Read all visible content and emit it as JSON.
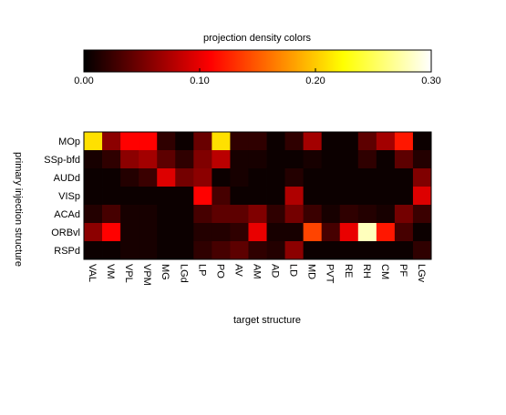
{
  "chart_data": {
    "type": "heatmap",
    "colorbar": {
      "title": "projection density colors",
      "ticks": [
        0.0,
        0.1,
        0.2,
        0.3
      ],
      "tick_labels": [
        "0.00",
        "0.10",
        "0.20",
        "0.30"
      ],
      "range": [
        0.0,
        0.3
      ],
      "colormap": "hot"
    },
    "ylabel": "primary injection structure",
    "xlabel": "target structure",
    "rows": [
      "MOp",
      "SSp-bfd",
      "AUDd",
      "VISp",
      "ACAd",
      "ORBvl",
      "RSPd"
    ],
    "columns": [
      "VAL",
      "VM",
      "VPL",
      "VPM",
      "MG",
      "LGd",
      "LP",
      "PO",
      "AV",
      "AM",
      "AD",
      "LD",
      "MD",
      "PVT",
      "RE",
      "RH",
      "CM",
      "PF",
      "LGv"
    ],
    "values": [
      [
        0.21,
        0.06,
        0.11,
        0.11,
        0.02,
        0.005,
        0.045,
        0.21,
        0.02,
        0.02,
        0.005,
        0.02,
        0.07,
        0.005,
        0.005,
        0.04,
        0.07,
        0.12,
        0.005
      ],
      [
        0.01,
        0.02,
        0.06,
        0.07,
        0.04,
        0.02,
        0.055,
        0.08,
        0.01,
        0.01,
        0.005,
        0.005,
        0.01,
        0.005,
        0.005,
        0.02,
        0.005,
        0.04,
        0.015
      ],
      [
        0.005,
        0.005,
        0.015,
        0.025,
        0.095,
        0.05,
        0.06,
        0.005,
        0.01,
        0.005,
        0.005,
        0.015,
        0.005,
        0.005,
        0.005,
        0.005,
        0.005,
        0.005,
        0.055
      ],
      [
        0.005,
        0.005,
        0.005,
        0.005,
        0.005,
        0.005,
        0.11,
        0.03,
        0.005,
        0.005,
        0.005,
        0.075,
        0.005,
        0.005,
        0.005,
        0.005,
        0.005,
        0.005,
        0.095
      ],
      [
        0.015,
        0.03,
        0.01,
        0.01,
        0.005,
        0.005,
        0.03,
        0.04,
        0.04,
        0.055,
        0.02,
        0.05,
        0.025,
        0.01,
        0.02,
        0.015,
        0.01,
        0.05,
        0.025
      ],
      [
        0.06,
        0.11,
        0.01,
        0.01,
        0.005,
        0.005,
        0.015,
        0.015,
        0.02,
        0.1,
        0.01,
        0.01,
        0.14,
        0.03,
        0.1,
        0.28,
        0.12,
        0.03,
        0.005
      ],
      [
        0.005,
        0.005,
        0.01,
        0.01,
        0.005,
        0.005,
        0.02,
        0.03,
        0.04,
        0.02,
        0.015,
        0.06,
        0.005,
        0.005,
        0.005,
        0.005,
        0.005,
        0.005,
        0.02
      ]
    ]
  }
}
